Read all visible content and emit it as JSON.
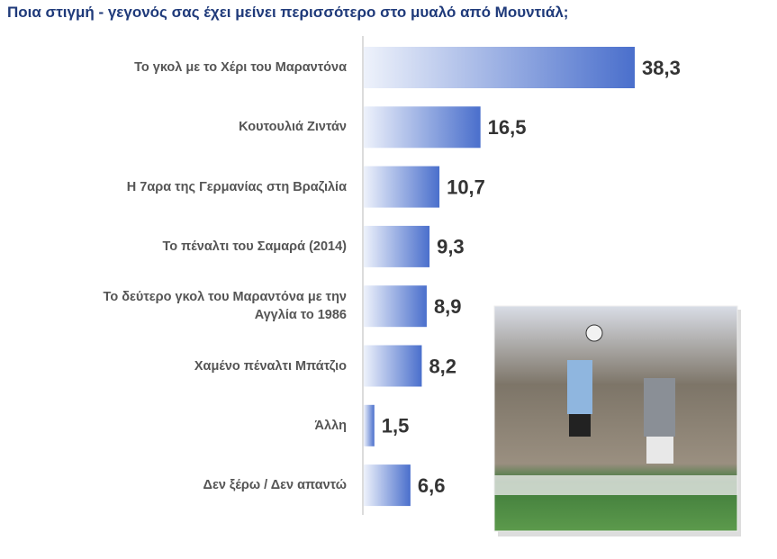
{
  "chart_data": {
    "type": "bar",
    "orientation": "horizontal",
    "title": "Ποια στιγμή - γεγονός σας έχει μείνει περισσότερο στο μυαλό από Μουντιάλ;",
    "categories": [
      "Το γκολ με το Χέρι του Μαραντόνα",
      "Κουτουλιά Ζιντάν",
      "Η 7αρα της Γερμανίας στη Βραζιλία",
      "Το πέναλτι του Σαμαρά (2014)",
      "Το δεύτερο γκολ του Μαραντόνα με την Αγγλία το 1986",
      "Χαμένο πέναλτι Μπάτζιο",
      "Άλλη",
      "Δεν ξέρω / Δεν απαντώ"
    ],
    "values": [
      38.3,
      16.5,
      10.7,
      9.3,
      8.9,
      8.2,
      1.5,
      6.6
    ],
    "value_labels": [
      "38,3",
      "16,5",
      "10,7",
      "9,3",
      "8,9",
      "8,2",
      "1,5",
      "6,6"
    ],
    "color": "#4a6fcc"
  }
}
